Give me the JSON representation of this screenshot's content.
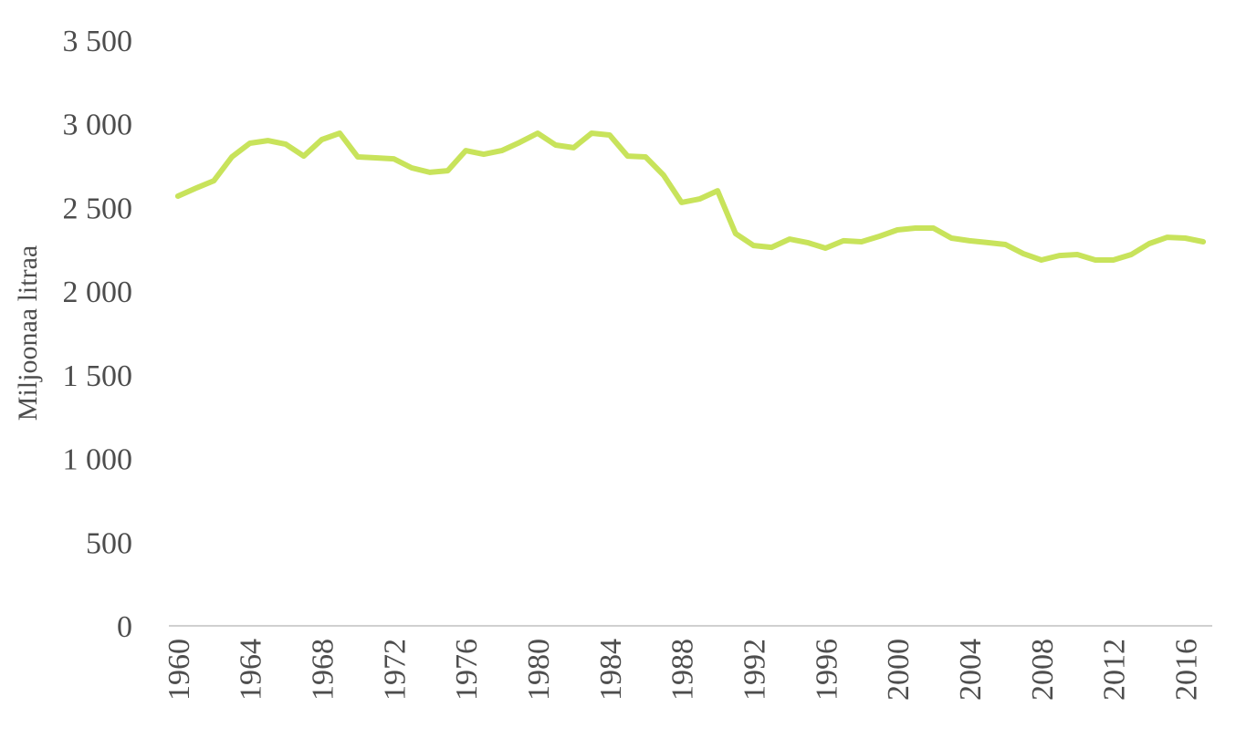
{
  "chart_data": {
    "type": "line",
    "y_label": "Miljoonaa litraa",
    "x": [
      1960,
      1961,
      1962,
      1963,
      1964,
      1965,
      1966,
      1967,
      1968,
      1969,
      1970,
      1971,
      1972,
      1973,
      1974,
      1975,
      1976,
      1977,
      1978,
      1979,
      1980,
      1981,
      1982,
      1983,
      1984,
      1985,
      1986,
      1987,
      1988,
      1989,
      1990,
      1991,
      1992,
      1993,
      1994,
      1995,
      1996,
      1997,
      1998,
      1999,
      2000,
      2001,
      2002,
      2003,
      2004,
      2005,
      2006,
      2007,
      2008,
      2009,
      2010,
      2011,
      2012,
      2013,
      2014,
      2015,
      2016,
      2017
    ],
    "values": [
      2568,
      2615,
      2660,
      2802,
      2884,
      2900,
      2878,
      2807,
      2906,
      2944,
      2802,
      2797,
      2791,
      2737,
      2710,
      2720,
      2840,
      2818,
      2840,
      2889,
      2944,
      2873,
      2857,
      2944,
      2933,
      2807,
      2802,
      2693,
      2530,
      2551,
      2600,
      2344,
      2273,
      2262,
      2311,
      2290,
      2257,
      2301,
      2295,
      2328,
      2366,
      2377,
      2377,
      2317,
      2301,
      2290,
      2279,
      2224,
      2186,
      2213,
      2219,
      2186,
      2186,
      2219,
      2284,
      2322,
      2317,
      2295
    ],
    "color": "#c8e35b",
    "xlim": [
      1959.5,
      2017.5
    ],
    "xticks": [
      1960,
      1964,
      1968,
      1972,
      1976,
      1980,
      1984,
      1988,
      1992,
      1996,
      2000,
      2004,
      2008,
      2012,
      2016
    ],
    "ylim": [
      0,
      3500
    ],
    "yticks": [
      0,
      500,
      {
        "value": 1000,
        "label": "1 000"
      },
      {
        "value": 1500,
        "label": "1 500"
      },
      {
        "value": 2000,
        "label": "2 000"
      },
      {
        "value": 2500,
        "label": "2 500"
      },
      {
        "value": 3000,
        "label": "3 000"
      },
      {
        "value": 3500,
        "label": "3 500"
      }
    ],
    "grid": false
  }
}
